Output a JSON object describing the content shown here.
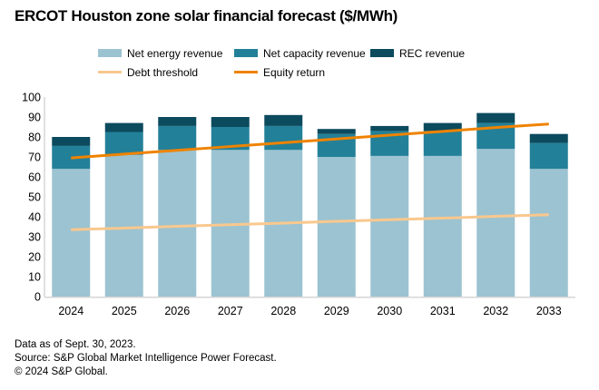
{
  "chart": {
    "title": "ERCOT Houston zone solar financial forecast ($/MWh)"
  },
  "legend": {
    "items": [
      {
        "label": "Net energy revenue",
        "type": "bar"
      },
      {
        "label": "Net capacity revenue",
        "type": "bar"
      },
      {
        "label": "REC revenue",
        "type": "bar"
      },
      {
        "label": "Debt threshold",
        "type": "line"
      },
      {
        "label": "Equity return",
        "type": "line"
      }
    ]
  },
  "chart_data": {
    "type": "bar",
    "stacked": true,
    "title": "ERCOT Houston zone solar financial forecast ($/MWh)",
    "categories": [
      "2024",
      "2025",
      "2026",
      "2027",
      "2028",
      "2029",
      "2030",
      "2031",
      "2032",
      "2033"
    ],
    "series": [
      {
        "name": "Net energy revenue",
        "type": "bar",
        "color": "#9cc3d1",
        "values": [
          64,
          71,
          73.5,
          73.5,
          73.5,
          70,
          70.5,
          70.5,
          74,
          64
        ]
      },
      {
        "name": "Net capacity revenue",
        "type": "bar",
        "color": "#238099",
        "values": [
          11.5,
          11.5,
          12,
          11.5,
          12,
          11.5,
          12.5,
          12.5,
          13,
          13
        ]
      },
      {
        "name": "REC revenue",
        "type": "bar",
        "color": "#0c4a5e",
        "values": [
          4.5,
          4.5,
          4.5,
          5,
          5.5,
          2.5,
          2.5,
          4,
          5,
          4.5
        ]
      },
      {
        "name": "Debt threshold",
        "type": "line",
        "color": "#f9c88e",
        "values": [
          33.5,
          34.3,
          35.2,
          36,
          36.8,
          37.7,
          38.5,
          39.3,
          40.2,
          41
        ]
      },
      {
        "name": "Equity return",
        "type": "line",
        "color": "#ef8300",
        "values": [
          69.5,
          71.4,
          73.3,
          75.2,
          77.1,
          79,
          80.9,
          82.8,
          84.7,
          86.5
        ]
      }
    ],
    "stack_totals": [
      80,
      87,
      90,
      90,
      91,
      84,
      85.5,
      87,
      92,
      81.5
    ],
    "xlabel": "",
    "ylabel": "",
    "ylim": [
      0,
      100
    ],
    "ytick_step": 10,
    "grid": false,
    "legend_position": "top",
    "axis_color": "#d6d6d6"
  },
  "footer": {
    "line1": "Data as of Sept. 30, 2023.",
    "line2": "Source: S&P Global Market Intelligence Power Forecast.",
    "line3": "© 2024 S&P Global."
  }
}
